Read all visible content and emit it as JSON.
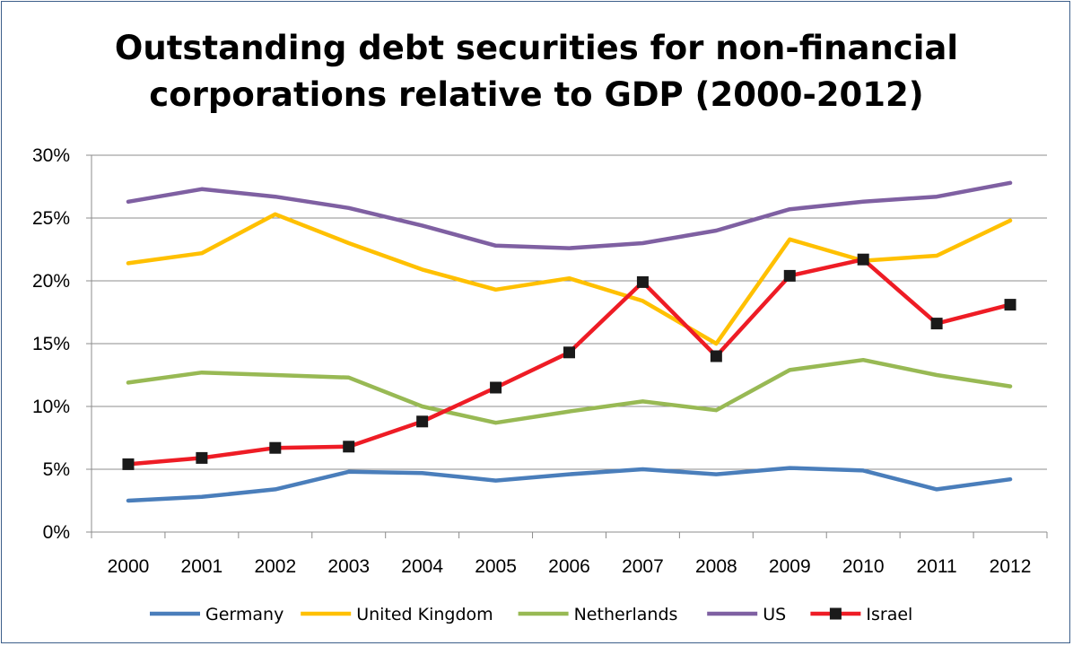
{
  "chart_data": {
    "type": "line",
    "title_lines": [
      "Outstanding debt securities for non-financial",
      "corporations relative to GDP (2000-2012)"
    ],
    "x": [
      "2000",
      "2001",
      "2002",
      "2003",
      "2004",
      "2005",
      "2006",
      "2007",
      "2008",
      "2009",
      "2010",
      "2011",
      "2012"
    ],
    "yticks": [
      "0%",
      "5%",
      "10%",
      "15%",
      "20%",
      "25%",
      "30%"
    ],
    "ylim": [
      0,
      30
    ],
    "grid": true,
    "legend_position": "bottom",
    "series": [
      {
        "name": "Germany",
        "color": "#4a7ebb",
        "marker": "none",
        "values": [
          2.5,
          2.8,
          3.4,
          4.8,
          4.7,
          4.1,
          4.6,
          5.0,
          4.6,
          5.1,
          4.9,
          3.4,
          4.2
        ]
      },
      {
        "name": "United Kingdom",
        "color": "#ffc000",
        "marker": "none",
        "values": [
          21.4,
          22.2,
          25.3,
          23.0,
          20.9,
          19.3,
          20.2,
          18.4,
          15.0,
          23.3,
          21.6,
          22.0,
          24.8
        ]
      },
      {
        "name": "Netherlands",
        "color": "#98b954",
        "marker": "none",
        "values": [
          11.9,
          12.7,
          12.5,
          12.3,
          10.0,
          8.7,
          9.6,
          10.4,
          9.7,
          12.9,
          13.7,
          12.5,
          11.6
        ]
      },
      {
        "name": "US",
        "color": "#7f60a2",
        "marker": "none",
        "values": [
          26.3,
          27.3,
          26.7,
          25.8,
          24.4,
          22.8,
          22.6,
          23.0,
          24.0,
          25.7,
          26.3,
          26.7,
          27.8
        ]
      },
      {
        "name": "Israel",
        "color": "#ee1c25",
        "marker": "square",
        "values": [
          5.4,
          5.9,
          6.7,
          6.8,
          8.8,
          11.5,
          14.3,
          19.9,
          14.0,
          20.4,
          21.7,
          16.6,
          18.1
        ]
      }
    ]
  }
}
